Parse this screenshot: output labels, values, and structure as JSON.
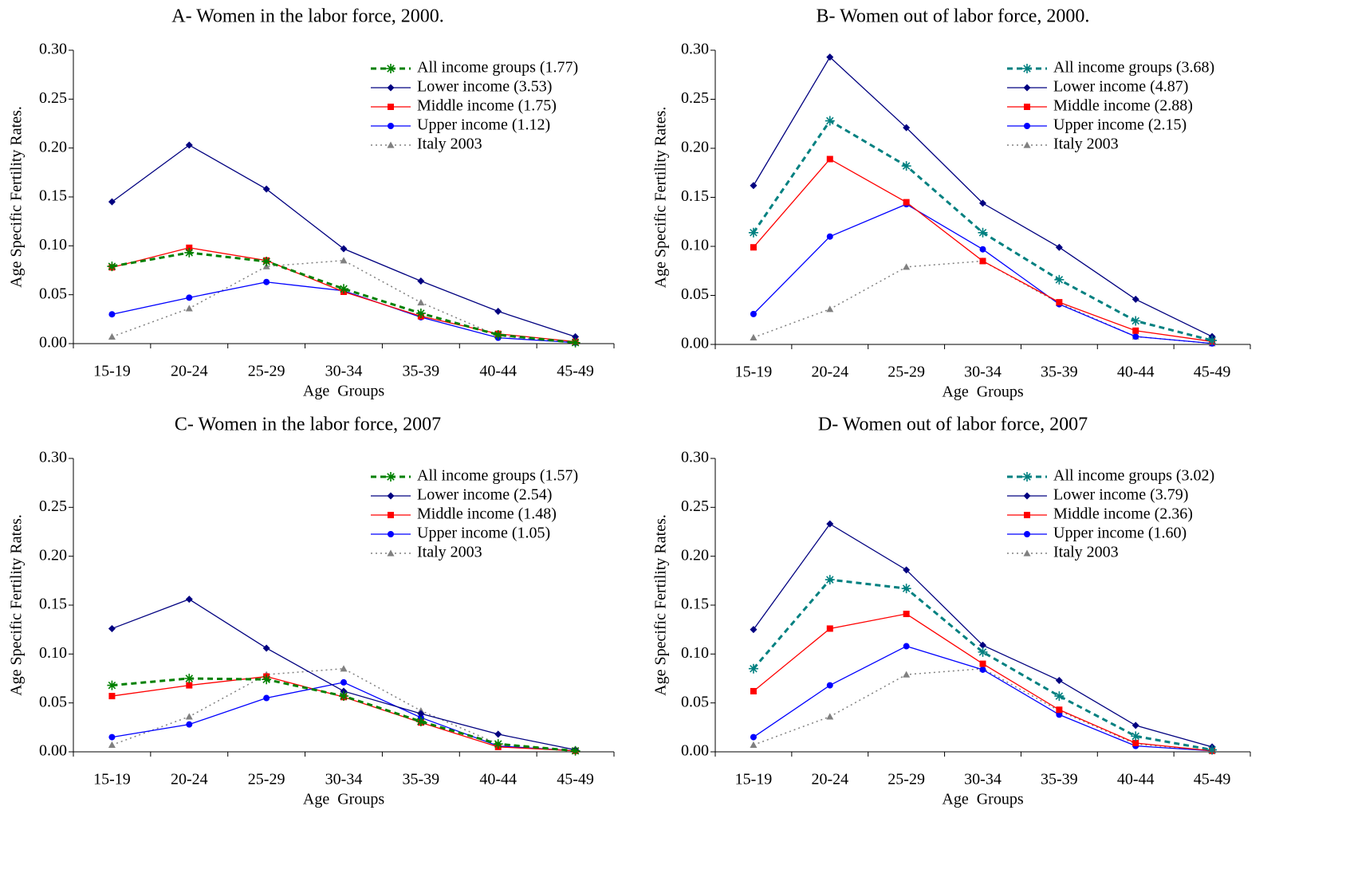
{
  "chart_data": [
    {
      "type": "line",
      "title": "A- Women in the labor force, 2000.",
      "xlabel": "Age  Groups",
      "ylabel": "Age Specific Fertility Rates.",
      "categories": [
        "15-19",
        "20-24",
        "25-29",
        "30-34",
        "35-39",
        "40-44",
        "45-49"
      ],
      "ylim": [
        0,
        0.3
      ],
      "yticks": [
        {
          "value": 0,
          "label": "0.00"
        },
        0.05,
        {
          "value": 0.1,
          "label": "0.10"
        },
        0.15,
        {
          "value": 0.2,
          "label": "0.20"
        },
        0.25,
        {
          "value": 0.3,
          "label": "0.30"
        }
      ],
      "legend": "upper right",
      "series": [
        {
          "name": "All income groups (1.77)",
          "color": "#008000",
          "marker": "asterisk",
          "line_style": "dashed",
          "values": [
            0.079,
            0.093,
            0.084,
            0.056,
            0.031,
            0.009,
            0.001
          ]
        },
        {
          "name": "Lower income (3.53)",
          "color": "#000080",
          "marker": "diamond",
          "line_style": "solid",
          "values": [
            0.145,
            0.203,
            0.158,
            0.097,
            0.064,
            0.033,
            0.007
          ]
        },
        {
          "name": "Middle income (1.75)",
          "color": "#ff0000",
          "marker": "square",
          "line_style": "solid",
          "values": [
            0.078,
            0.098,
            0.085,
            0.053,
            0.028,
            0.01,
            0.002
          ]
        },
        {
          "name": "Upper income (1.12)",
          "color": "#0000ff",
          "marker": "circle",
          "line_style": "solid",
          "values": [
            0.03,
            0.047,
            0.063,
            0.054,
            0.027,
            0.006,
            0.001
          ]
        },
        {
          "name": "Italy 2003",
          "color": "#808080",
          "marker": "triangle",
          "line_style": "dotted",
          "values": [
            0.007,
            0.036,
            0.079,
            0.085,
            0.042,
            0.008,
            0.001
          ]
        }
      ]
    },
    {
      "type": "line",
      "title": "B- Women out of labor force, 2000.",
      "xlabel": "Age  Groups",
      "ylabel": "Age Specific Fertility Rates.",
      "categories": [
        "15-19",
        "20-24",
        "25-29",
        "30-34",
        "35-39",
        "40-44",
        "45-49"
      ],
      "ylim": [
        0,
        0.3
      ],
      "yticks": [
        {
          "value": 0,
          "label": "0.00"
        },
        0.05,
        {
          "value": 0.1,
          "label": "0.10"
        },
        0.15,
        {
          "value": 0.2,
          "label": "0.20"
        },
        0.25,
        {
          "value": 0.3,
          "label": "0.30"
        }
      ],
      "legend": "upper right",
      "series": [
        {
          "name": "All income groups (3.68)",
          "color": "#008080",
          "marker": "asterisk",
          "line_style": "dashed",
          "values": [
            0.114,
            0.228,
            0.182,
            0.114,
            0.066,
            0.024,
            0.004
          ]
        },
        {
          "name": "Lower income (4.87)",
          "color": "#000080",
          "marker": "diamond",
          "line_style": "solid",
          "values": [
            0.162,
            0.293,
            0.221,
            0.144,
            0.099,
            0.046,
            0.008
          ]
        },
        {
          "name": "Middle income (2.88)",
          "color": "#ff0000",
          "marker": "square",
          "line_style": "solid",
          "values": [
            0.099,
            0.189,
            0.145,
            0.085,
            0.043,
            0.014,
            0.003
          ]
        },
        {
          "name": "Upper income (2.15)",
          "color": "#0000ff",
          "marker": "circle",
          "line_style": "solid",
          "values": [
            0.031,
            0.11,
            0.143,
            0.097,
            0.041,
            0.008,
            0.001
          ]
        },
        {
          "name": "Italy 2003",
          "color": "#808080",
          "marker": "triangle",
          "line_style": "dotted",
          "values": [
            0.007,
            0.036,
            0.079,
            0.085,
            0.042,
            0.008,
            0.001
          ]
        }
      ]
    },
    {
      "type": "line",
      "title": "C- Women in the labor force, 2007",
      "xlabel": "Age  Groups",
      "ylabel": "Age Specific Fertility Rates.",
      "categories": [
        "15-19",
        "20-24",
        "25-29",
        "30-34",
        "35-39",
        "40-44",
        "45-49"
      ],
      "ylim": [
        0,
        0.3
      ],
      "yticks": [
        {
          "value": 0,
          "label": "0.00"
        },
        0.05,
        {
          "value": 0.1,
          "label": "0.10"
        },
        0.15,
        {
          "value": 0.2,
          "label": "0.20"
        },
        0.25,
        {
          "value": 0.3,
          "label": "0.30"
        }
      ],
      "legend": "upper right",
      "series": [
        {
          "name": "All income groups (1.57)",
          "color": "#008000",
          "marker": "asterisk",
          "line_style": "dashed",
          "values": [
            0.068,
            0.075,
            0.074,
            0.057,
            0.031,
            0.008,
            0.001
          ]
        },
        {
          "name": "Lower income (2.54)",
          "color": "#000080",
          "marker": "diamond",
          "line_style": "solid",
          "values": [
            0.126,
            0.156,
            0.106,
            0.062,
            0.039,
            0.018,
            0.002
          ]
        },
        {
          "name": "Middle income (1.48)",
          "color": "#ff0000",
          "marker": "square",
          "line_style": "solid",
          "values": [
            0.057,
            0.068,
            0.077,
            0.056,
            0.03,
            0.005,
            0.001
          ]
        },
        {
          "name": "Upper income (1.05)",
          "color": "#0000ff",
          "marker": "circle",
          "line_style": "solid",
          "values": [
            0.015,
            0.028,
            0.055,
            0.071,
            0.035,
            0.006,
            0.001
          ]
        },
        {
          "name": "Italy 2003",
          "color": "#808080",
          "marker": "triangle",
          "line_style": "dotted",
          "values": [
            0.007,
            0.036,
            0.079,
            0.085,
            0.042,
            0.008,
            0.001
          ]
        }
      ]
    },
    {
      "type": "line",
      "title": "D- Women out of labor force, 2007",
      "xlabel": "Age  Groups",
      "ylabel": "Age Specific Fertility Rates.",
      "categories": [
        "15-19",
        "20-24",
        "25-29",
        "30-34",
        "35-39",
        "40-44",
        "45-49"
      ],
      "ylim": [
        0,
        0.3
      ],
      "yticks": [
        {
          "value": 0,
          "label": "0.00"
        },
        0.05,
        {
          "value": 0.1,
          "label": "0.10"
        },
        0.15,
        {
          "value": 0.2,
          "label": "0.20"
        },
        0.25,
        {
          "value": 0.3,
          "label": "0.30"
        }
      ],
      "legend": "upper right",
      "series": [
        {
          "name": "All income groups (3.02)",
          "color": "#008080",
          "marker": "asterisk",
          "line_style": "dashed",
          "values": [
            0.085,
            0.176,
            0.167,
            0.102,
            0.057,
            0.016,
            0.002
          ]
        },
        {
          "name": "Lower income (3.79)",
          "color": "#000080",
          "marker": "diamond",
          "line_style": "solid",
          "values": [
            0.125,
            0.233,
            0.186,
            0.109,
            0.073,
            0.027,
            0.005
          ]
        },
        {
          "name": "Middle income (2.36)",
          "color": "#ff0000",
          "marker": "square",
          "line_style": "solid",
          "values": [
            0.062,
            0.126,
            0.141,
            0.09,
            0.043,
            0.009,
            0.001
          ]
        },
        {
          "name": "Upper income (1.60)",
          "color": "#0000ff",
          "marker": "circle",
          "line_style": "solid",
          "values": [
            0.015,
            0.068,
            0.108,
            0.084,
            0.038,
            0.006,
            0.001
          ]
        },
        {
          "name": "Italy 2003",
          "color": "#808080",
          "marker": "triangle",
          "line_style": "dotted",
          "values": [
            0.007,
            0.036,
            0.079,
            0.085,
            0.042,
            0.008,
            0.001
          ]
        }
      ]
    }
  ]
}
